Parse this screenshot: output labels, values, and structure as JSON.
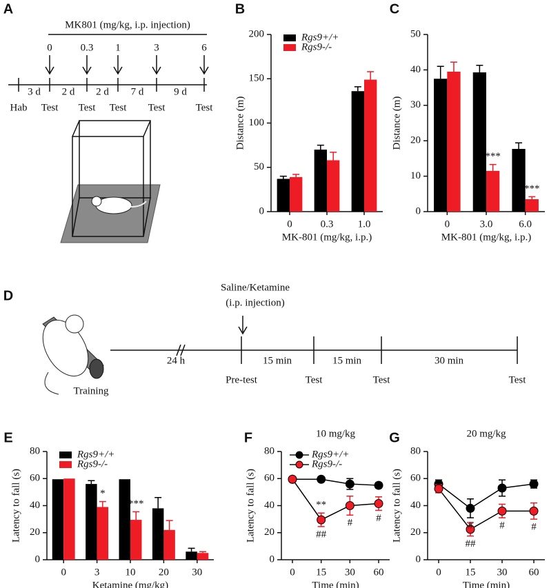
{
  "panel_labels": [
    "A",
    "B",
    "C",
    "D",
    "E",
    "F",
    "G"
  ],
  "timeline_a": {
    "title": "MK801 (mg/kg, i.p. injection)",
    "doses": [
      "0",
      "0.3",
      "1",
      "3",
      "6"
    ],
    "intervals": [
      "3 d",
      "2 d",
      "2 d",
      "7 d",
      "9 d"
    ],
    "events": [
      "Hab",
      "Test",
      "Test",
      "Test",
      "Test",
      "Test"
    ]
  },
  "timeline_d": {
    "injection": "Saline/Ketamine",
    "injection_route": "(i.p. injection)",
    "intervals": [
      "24 h",
      "15 min",
      "15 min",
      "30 min"
    ],
    "events": [
      "Pre-test",
      "Test",
      "Test",
      "Test"
    ],
    "training": "Training"
  },
  "chart_data": [
    {
      "type": "bar",
      "y_label": "Distance (m)",
      "x_label": "MK-801 (mg/kg, i.p.)",
      "categories": [
        "0",
        "0.3",
        "1.0"
      ],
      "ylim": [
        0,
        200
      ],
      "yticks": [
        0,
        50,
        100,
        150,
        200
      ],
      "legend": true,
      "legend_position": "upper left",
      "annotations": [],
      "series": [
        {
          "name": "Rgs9+/+",
          "color": "#000000",
          "values": [
            37,
            70,
            136
          ],
          "errors": [
            3,
            5,
            5
          ]
        },
        {
          "name": "Rgs9-/-",
          "color": "#ee1c25",
          "values": [
            39,
            58,
            149
          ],
          "errors": [
            3,
            9,
            9
          ]
        }
      ]
    },
    {
      "type": "bar",
      "y_label": "Distance (m)",
      "x_label": "MK-801 (mg/kg, i.p.)",
      "categories": [
        "0",
        "3.0",
        "6.0"
      ],
      "ylim": [
        0,
        50
      ],
      "yticks": [
        0,
        10,
        20,
        30,
        40,
        50
      ],
      "legend": false,
      "annotations": [
        "***",
        "***"
      ],
      "series": [
        {
          "color": "#000000",
          "values": [
            37.5,
            39.3,
            17.7
          ],
          "errors": [
            3.5,
            2,
            1.7
          ]
        },
        {
          "color": "#ee1c25",
          "values": [
            39.5,
            11.5,
            3.5
          ],
          "errors": [
            2.7,
            1.8,
            0.7
          ]
        }
      ]
    },
    {
      "type": "bar",
      "y_label": "Latency to fall (s)",
      "x_label": "Ketamine (mg/kg)",
      "categories": [
        "0",
        "3",
        "10",
        "20",
        "30"
      ],
      "ylim": [
        0,
        80
      ],
      "yticks": [
        0,
        20,
        40,
        60,
        80
      ],
      "legend": true,
      "legend_position": "upper left",
      "annotations": [
        "*",
        "***"
      ],
      "series": [
        {
          "name": "Rgs9+/+",
          "color": "#000000",
          "values": [
            59.5,
            56,
            59.5,
            38,
            6
          ],
          "errors": [
            0,
            2.5,
            0,
            8,
            2.5
          ]
        },
        {
          "name": "Rgs9-/-",
          "color": "#ee1c25",
          "values": [
            60,
            39,
            29.5,
            22,
            5
          ],
          "errors": [
            0,
            4,
            6,
            7,
            1
          ]
        }
      ]
    },
    {
      "type": "line",
      "title": "10 mg/kg",
      "y_label": "Latency to fall (s)",
      "x_label": "Time (min)",
      "categories": [
        "0",
        "15",
        "30",
        "60"
      ],
      "ylim": [
        0,
        80
      ],
      "yticks": [
        0,
        20,
        40,
        60,
        80
      ],
      "legend": true,
      "legend_position": "upper left",
      "annotations": [
        "**",
        "##",
        "#",
        "#"
      ],
      "series": [
        {
          "name": "Rgs9+/+",
          "color": "#000000",
          "values": [
            59.5,
            59.5,
            56,
            55
          ],
          "errors": [
            0,
            1.5,
            4,
            2
          ]
        },
        {
          "name": "Rgs9-/-",
          "color": "#ee1c25",
          "values": [
            59.5,
            29.5,
            40,
            41.5
          ],
          "errors": [
            0,
            5,
            7,
            5
          ]
        }
      ]
    },
    {
      "type": "line",
      "title": "20 mg/kg",
      "y_label": "Latency to fall (s)",
      "x_label": "Time (min)",
      "categories": [
        "0",
        "15",
        "30",
        "60"
      ],
      "ylim": [
        0,
        80
      ],
      "yticks": [
        0,
        20,
        40,
        60,
        80
      ],
      "legend": false,
      "annotations": [
        "#",
        "##",
        "#",
        "#"
      ],
      "series": [
        {
          "color": "#000000",
          "values": [
            56,
            38,
            53,
            56
          ],
          "errors": [
            3,
            7,
            6,
            3
          ]
        },
        {
          "color": "#ee1c25",
          "values": [
            52.5,
            22.5,
            36,
            36
          ],
          "errors": [
            3,
            5,
            5,
            6
          ]
        }
      ]
    }
  ]
}
